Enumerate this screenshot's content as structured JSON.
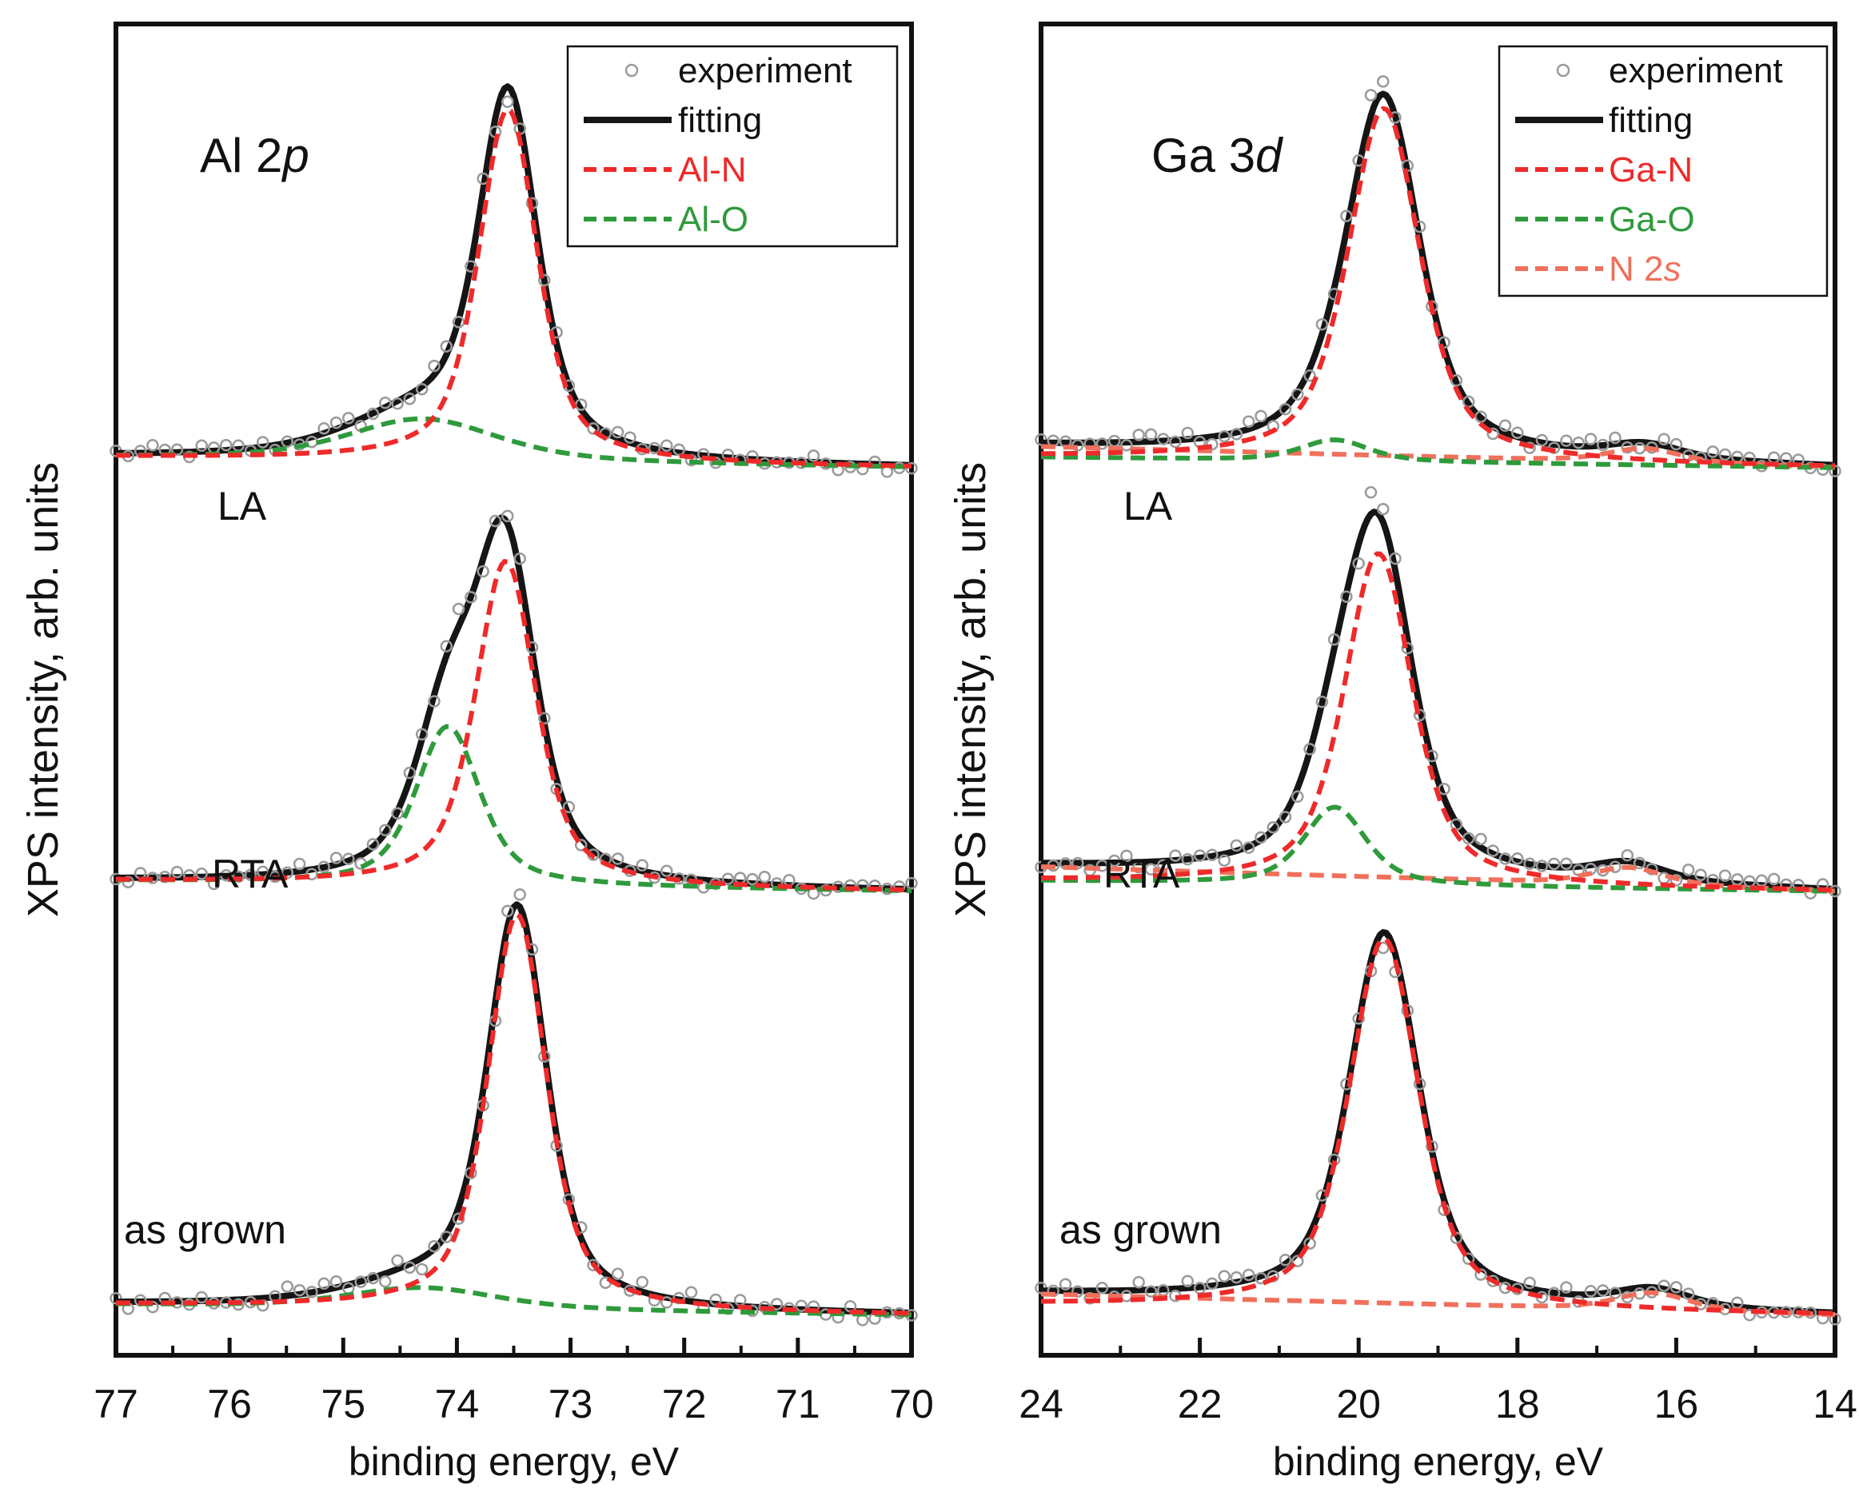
{
  "figure": {
    "description_label": "XPS spectra",
    "colors": {
      "experiment": "#9a9a9a",
      "fitting": "#151515",
      "main_component": "#ee2a2a",
      "oxide_component": "#2f9a3c",
      "n2s_component": "#f0705c",
      "frame": "#111111"
    }
  },
  "chart_data": [
    {
      "type": "line",
      "panel": "left",
      "element_label": "Al 2p",
      "element_label_main": "Al 2",
      "element_label_orbital": "p",
      "xlabel": "binding energy, eV",
      "ylabel": "XPS intensity, arb. units",
      "xlim": [
        77,
        70
      ],
      "x_ticks": [
        "77",
        "76",
        "75",
        "74",
        "73",
        "72",
        "71",
        "70"
      ],
      "x_tick_values": [
        77,
        76,
        75,
        74,
        73,
        72,
        71,
        70
      ],
      "ylim": [
        0,
        3.9
      ],
      "legend": {
        "placement": "top-right",
        "entries": [
          {
            "label": "experiment",
            "style": "circle",
            "color_key": "experiment"
          },
          {
            "label": "fitting",
            "style": "solid",
            "color_key": "fitting"
          },
          {
            "label": "Al-N",
            "style": "dashed",
            "color_key": "main_component"
          },
          {
            "label": "Al-O",
            "style": "dashed",
            "color_key": "oxide_component"
          }
        ]
      },
      "samples": [
        {
          "label": "LA",
          "baseline": 2.4,
          "label_offset": 1.0,
          "components": [
            {
              "name": "Al-N",
              "center": 73.55,
              "height": 1.0,
              "width": 0.33,
              "color_key": "main_component"
            },
            {
              "name": "Al-O",
              "center": 74.3,
              "height": 0.12,
              "width": 0.85,
              "color_key": "oxide_component"
            }
          ],
          "experiment_noise": 0.02
        },
        {
          "label": "RTA",
          "baseline": 1.2,
          "label_offset": 0.92,
          "components": [
            {
              "name": "Al-N",
              "center": 73.57,
              "height": 0.92,
              "width": 0.34,
              "color_key": "main_component"
            },
            {
              "name": "Al-O",
              "center": 74.08,
              "height": 0.45,
              "width": 0.36,
              "color_key": "oxide_component"
            }
          ],
          "experiment_noise": 0.02
        },
        {
          "label": "as grown",
          "baseline": 0.0,
          "label_offset": 1.0,
          "components": [
            {
              "name": "Al-N",
              "center": 73.47,
              "height": 1.12,
              "width": 0.33,
              "color_key": "main_component"
            },
            {
              "name": "Al-O",
              "center": 74.3,
              "height": 0.06,
              "width": 0.85,
              "color_key": "oxide_component"
            }
          ],
          "experiment_noise": 0.025
        }
      ]
    },
    {
      "type": "line",
      "panel": "right",
      "element_label": "Ga 3d",
      "element_label_main": "Ga 3",
      "element_label_orbital": "d",
      "xlabel": "binding energy, eV",
      "ylabel": "XPS intensity, arb. units",
      "xlim": [
        24,
        14
      ],
      "x_ticks": [
        "24",
        "22",
        "20",
        "18",
        "16",
        "14"
      ],
      "x_tick_values": [
        24,
        22,
        20,
        18,
        16,
        14
      ],
      "ylim": [
        0,
        3.9
      ],
      "legend": {
        "placement": "top-right",
        "entries": [
          {
            "label": "experiment",
            "style": "circle",
            "color_key": "experiment"
          },
          {
            "label": "fitting",
            "style": "solid",
            "color_key": "fitting"
          },
          {
            "label": "Ga-N",
            "style": "dashed",
            "color_key": "main_component"
          },
          {
            "label": "Ga-O",
            "style": "dashed",
            "color_key": "oxide_component"
          },
          {
            "label": "N 2s",
            "label_main": "N 2",
            "label_orbital": "s",
            "style": "dashed",
            "color_key": "n2s_component"
          }
        ]
      },
      "samples": [
        {
          "label": "LA",
          "baseline": 2.4,
          "label_offset": 1.0,
          "components": [
            {
              "name": "Ga-N",
              "center": 19.68,
              "height": 1.0,
              "width": 0.58,
              "color_key": "main_component"
            },
            {
              "name": "Ga-O",
              "center": 20.3,
              "height": 0.06,
              "width": 0.55,
              "color_key": "oxide_component"
            },
            {
              "name": "N 2s",
              "center": 16.4,
              "height": 0.04,
              "width": 0.6,
              "color_key": "n2s_component",
              "slope": 0.03
            }
          ],
          "experiment_noise": 0.02
        },
        {
          "label": "RTA",
          "baseline": 1.2,
          "label_offset": 1.0,
          "components": [
            {
              "name": "Ga-N",
              "center": 19.75,
              "height": 0.94,
              "width": 0.55,
              "color_key": "main_component"
            },
            {
              "name": "Ga-O",
              "center": 20.3,
              "height": 0.22,
              "width": 0.5,
              "color_key": "oxide_component"
            },
            {
              "name": "N 2s",
              "center": 16.6,
              "height": 0.05,
              "width": 0.6,
              "color_key": "n2s_component",
              "slope": 0.04
            }
          ],
          "experiment_noise": 0.02
        },
        {
          "label": "as grown",
          "baseline": 0.0,
          "label_offset": 1.0,
          "components": [
            {
              "name": "Ga-N",
              "center": 19.68,
              "height": 1.05,
              "width": 0.56,
              "color_key": "main_component"
            },
            {
              "name": "N 2s",
              "center": 16.3,
              "height": 0.05,
              "width": 0.6,
              "color_key": "n2s_component",
              "slope": 0.03
            }
          ],
          "experiment_noise": 0.02
        }
      ]
    }
  ]
}
